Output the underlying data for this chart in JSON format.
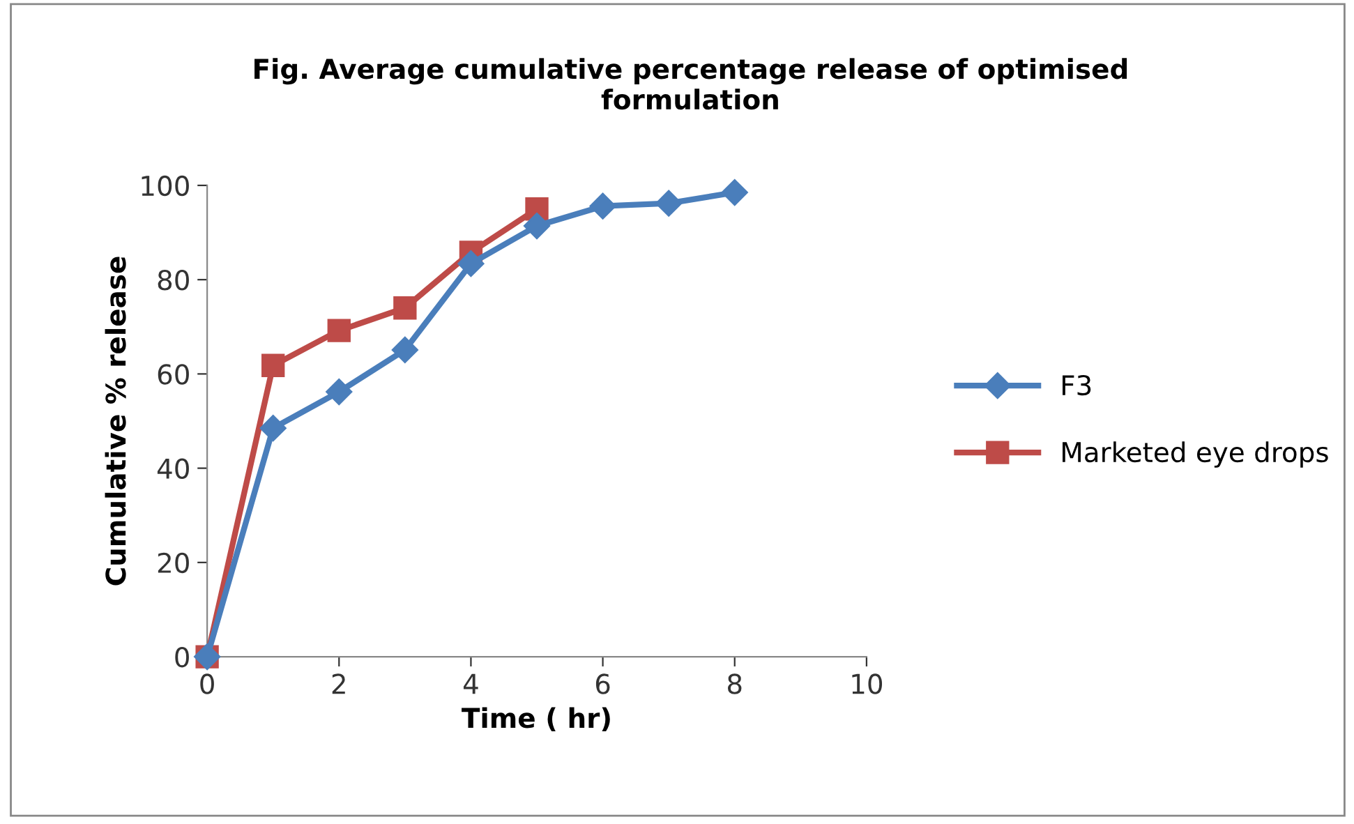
{
  "chart_data": {
    "type": "line",
    "title": "Fig. Average cumulative percentage release of optimised\nformulation",
    "xlabel": "Time ( hr)",
    "ylabel": "Cumulative % release",
    "xlim": [
      0,
      10
    ],
    "xticks": [
      0,
      2,
      4,
      6,
      8,
      10
    ],
    "ylim": [
      0,
      100
    ],
    "yticks": [
      0,
      20,
      40,
      60,
      80,
      100
    ],
    "grid": false,
    "legend": "right",
    "line_style": "solid",
    "series": [
      {
        "name": "F3",
        "color": "#4a7ebb",
        "marker": "diamond",
        "x": [
          0,
          1,
          2,
          3,
          4,
          5,
          6,
          7,
          8
        ],
        "values": [
          0,
          48.5,
          56.2,
          65.1,
          83.4,
          91.4,
          95.6,
          96.2,
          98.5
        ]
      },
      {
        "name": "Marketed eye drops",
        "color": "#be4b48",
        "marker": "square",
        "x": [
          0,
          1,
          2,
          3,
          4,
          5
        ],
        "values": [
          0,
          61.8,
          69.2,
          74,
          85.8,
          95
        ]
      }
    ]
  }
}
